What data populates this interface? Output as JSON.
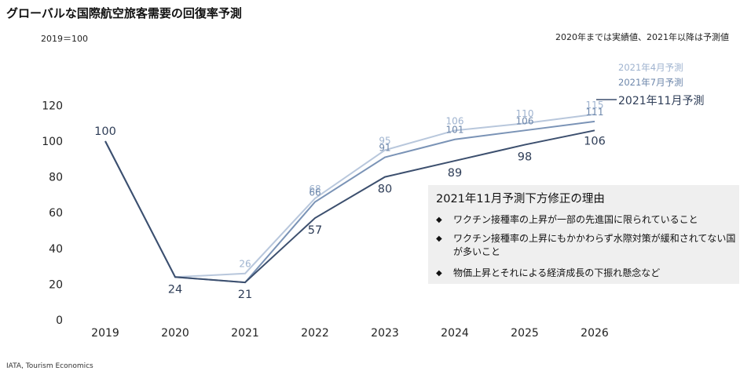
{
  "title": "グローバルな国際航空旅客需要の回復率予測",
  "index_note": "2019＝100",
  "actual_note": "2020年までは実績値、2021年以降は予測値",
  "source": "IATA, Tourism Economics",
  "callout": {
    "title": "2021年11月予測下方修正の理由",
    "bullet_icon": "diamond-bullet-icon",
    "reasons": [
      "ワクチン接種率の上昇が一部の先進国に限られていること",
      "ワクチン接種率の上昇にもかかわらず水際対策が緩和されてない国が多いこと",
      "物価上昇とそれによる経済成長の下振れ懸念など"
    ]
  },
  "chart_data": {
    "type": "line",
    "title": "グローバルな国際航空旅客需要の回復率予測",
    "categories": [
      "2019",
      "2020",
      "2021",
      "2022",
      "2023",
      "2024",
      "2025",
      "2026"
    ],
    "ylim": [
      0,
      120
    ],
    "yticks": [
      0,
      20,
      40,
      60,
      80,
      100,
      120
    ],
    "grid": false,
    "series": [
      {
        "name": "2021年4月予測",
        "color": "#b8c7dc",
        "label_color": "#9fb3cf",
        "values": [
          100,
          24,
          26,
          68,
          95,
          106,
          110,
          115
        ],
        "labels": [
          "",
          "",
          "26",
          "68",
          "95",
          "106",
          "110",
          "115"
        ]
      },
      {
        "name": "2021年7月予測",
        "color": "#7a93b6",
        "label_color": "#6d87ab",
        "values": [
          100,
          24,
          21,
          66,
          91,
          101,
          106,
          111
        ],
        "labels": [
          "",
          "",
          "",
          "66",
          "91",
          "101",
          "106",
          "111"
        ]
      },
      {
        "name": "2021年11月予測",
        "color": "#3c4f6e",
        "label_color": "#2e3d57",
        "values": [
          100,
          24,
          21,
          57,
          80,
          89,
          98,
          106
        ],
        "labels": [
          "100",
          "24",
          "21",
          "57",
          "80",
          "89",
          "98",
          "106"
        ]
      }
    ]
  }
}
